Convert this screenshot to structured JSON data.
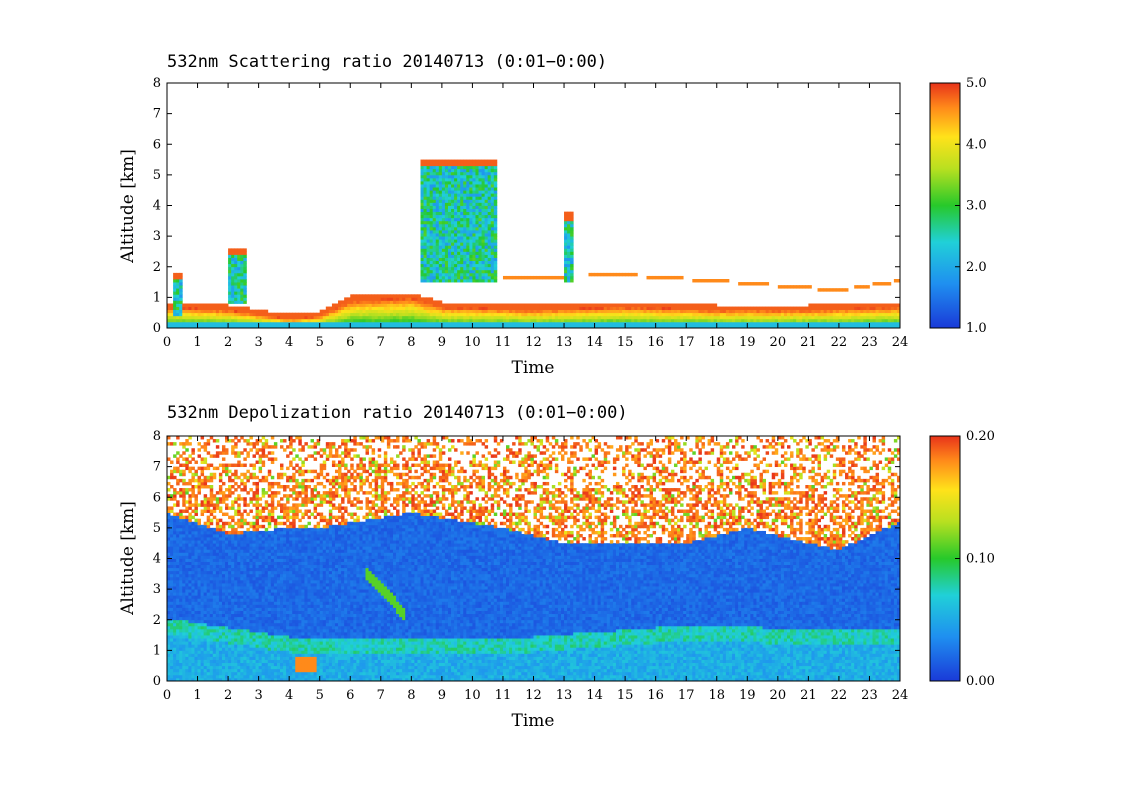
{
  "chart_data": [
    {
      "type": "heatmap",
      "title": "532nm Scattering ratio  20140713 (0:01−0:00)",
      "xlabel": "Time",
      "ylabel": "Altitude [km]",
      "xlim": [
        0,
        24
      ],
      "ylim": [
        0,
        8
      ],
      "x_ticks": [
        "0",
        "1",
        "2",
        "3",
        "4",
        "5",
        "6",
        "7",
        "8",
        "9",
        "10",
        "11",
        "12",
        "13",
        "14",
        "15",
        "16",
        "17",
        "18",
        "19",
        "20",
        "21",
        "22",
        "23",
        "24"
      ],
      "y_ticks": [
        "0",
        "1",
        "2",
        "3",
        "4",
        "5",
        "6",
        "7",
        "8"
      ],
      "colorbar": {
        "min": 1.0,
        "max": 5.0,
        "labels": [
          "1.0",
          "2.0",
          "3.0",
          "4.0",
          "5.0"
        ]
      },
      "features": {
        "boundary_layer_top_km": [
          [
            0,
            0.7
          ],
          [
            2,
            0.6
          ],
          [
            4,
            0.3
          ],
          [
            5,
            0.4
          ],
          [
            6,
            0.9
          ],
          [
            8,
            1.0
          ],
          [
            9,
            0.7
          ],
          [
            12,
            0.6
          ],
          [
            15,
            0.7
          ],
          [
            18,
            0.6
          ],
          [
            21,
            0.6
          ],
          [
            24,
            0.7
          ]
        ],
        "aerosol_layer_top_km": [
          [
            11,
            1.6
          ],
          [
            15,
            1.7
          ],
          [
            18,
            1.5
          ],
          [
            22,
            1.2
          ],
          [
            24,
            1.5
          ]
        ],
        "cloud_columns": [
          {
            "x0": 8.3,
            "x1": 10.8,
            "y0": 1.5,
            "y1": 5.5
          },
          {
            "x0": 13.0,
            "x1": 13.3,
            "y0": 1.5,
            "y1": 3.8
          },
          {
            "x0": 0.2,
            "x1": 0.5,
            "y0": 0.4,
            "y1": 1.8
          },
          {
            "x0": 2.0,
            "x1": 2.6,
            "y0": 0.8,
            "y1": 2.6
          }
        ]
      }
    },
    {
      "type": "heatmap",
      "title": "532nm Depolization ratio  20140713 (0:01−0:00)",
      "xlabel": "Time",
      "ylabel": "Altitude [km]",
      "xlim": [
        0,
        24
      ],
      "ylim": [
        0,
        8
      ],
      "x_ticks": [
        "0",
        "1",
        "2",
        "3",
        "4",
        "5",
        "6",
        "7",
        "8",
        "9",
        "10",
        "11",
        "12",
        "13",
        "14",
        "15",
        "16",
        "17",
        "18",
        "19",
        "20",
        "21",
        "22",
        "23",
        "24"
      ],
      "y_ticks": [
        "0",
        "1",
        "2",
        "3",
        "4",
        "5",
        "6",
        "7",
        "8"
      ],
      "colorbar": {
        "min": 0.0,
        "max": 0.2,
        "labels": [
          "0.00",
          "0.10",
          "0.20"
        ]
      },
      "features": {
        "noise_onset_km": [
          [
            0,
            5.5
          ],
          [
            2,
            4.8
          ],
          [
            4,
            5.0
          ],
          [
            5,
            5.0
          ],
          [
            8,
            5.5
          ],
          [
            11,
            5.0
          ],
          [
            13,
            4.5
          ],
          [
            17,
            4.5
          ],
          [
            19,
            5.0
          ],
          [
            21,
            4.5
          ],
          [
            22,
            4.3
          ],
          [
            24,
            5.2
          ]
        ],
        "layer_band_km": [
          [
            0,
            1.8
          ],
          [
            4,
            1.2
          ],
          [
            8,
            1.1
          ],
          [
            12,
            1.2
          ],
          [
            16,
            1.5
          ],
          [
            18,
            1.6
          ],
          [
            21,
            1.4
          ],
          [
            24,
            1.5
          ]
        ]
      }
    }
  ]
}
